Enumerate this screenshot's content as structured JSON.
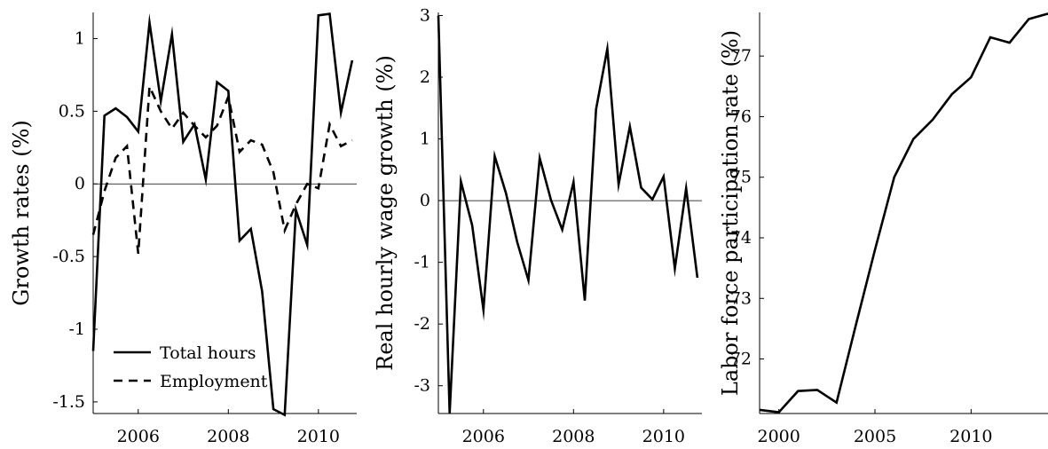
{
  "chart_data": [
    {
      "type": "line",
      "ylabel": "Growth rates (%)",
      "xlabel": "",
      "xlim": [
        2005,
        2010.85
      ],
      "ylim": [
        -1.58,
        1.18
      ],
      "xticks": [
        2006,
        2008,
        2010
      ],
      "yticks": [
        -1.5,
        -1,
        -0.5,
        0,
        0.5,
        1
      ],
      "ytick_labels": [
        "-1.5",
        "-1",
        "-0.5",
        "0",
        "0.5",
        "1"
      ],
      "zero_line": true,
      "grid": false,
      "legend": {
        "placement": "bottom-left"
      },
      "series": [
        {
          "name": "Total hours",
          "style": "solid",
          "x": [
            2005.0,
            2005.25,
            2005.5,
            2005.75,
            2006.0,
            2006.25,
            2006.5,
            2006.75,
            2007.0,
            2007.25,
            2007.5,
            2007.75,
            2008.0,
            2008.25,
            2008.5,
            2008.75,
            2009.0,
            2009.25,
            2009.5,
            2009.75,
            2010.0,
            2010.25,
            2010.5,
            2010.75
          ],
          "values": [
            -1.15,
            0.47,
            0.52,
            0.46,
            0.36,
            1.11,
            0.57,
            1.03,
            0.29,
            0.41,
            0.03,
            0.7,
            0.64,
            -0.39,
            -0.31,
            -0.74,
            -1.55,
            -1.59,
            -0.18,
            -0.42,
            1.16,
            1.17,
            0.49,
            0.85
          ]
        },
        {
          "name": "Employment",
          "style": "dashed",
          "x": [
            2005.0,
            2005.25,
            2005.5,
            2005.75,
            2006.0,
            2006.25,
            2006.5,
            2006.75,
            2007.0,
            2007.25,
            2007.5,
            2007.75,
            2008.0,
            2008.25,
            2008.5,
            2008.75,
            2009.0,
            2009.25,
            2009.5,
            2009.75,
            2010.0,
            2010.25,
            2010.5,
            2010.75
          ],
          "values": [
            -0.35,
            -0.05,
            0.18,
            0.26,
            -0.48,
            0.67,
            0.5,
            0.38,
            0.49,
            0.4,
            0.32,
            0.4,
            0.6,
            0.22,
            0.3,
            0.27,
            0.08,
            -0.32,
            -0.14,
            0.0,
            -0.03,
            0.41,
            0.26,
            0.3
          ]
        }
      ]
    },
    {
      "type": "line",
      "ylabel": "Real hourly wage growth (%)",
      "xlabel": "",
      "xlim": [
        2005,
        2010.85
      ],
      "ylim": [
        -3.45,
        3.05
      ],
      "xticks": [
        2006,
        2008,
        2010
      ],
      "yticks": [
        -3,
        -2,
        -1,
        0,
        1,
        2,
        3
      ],
      "ytick_labels": [
        "-3",
        "-2",
        "-1",
        "0",
        "1",
        "2",
        "3"
      ],
      "zero_line": true,
      "grid": false,
      "series": [
        {
          "style": "solid",
          "x": [
            2005.0,
            2005.25,
            2005.5,
            2005.75,
            2006.0,
            2006.25,
            2006.5,
            2006.75,
            2007.0,
            2007.25,
            2007.5,
            2007.75,
            2008.0,
            2008.25,
            2008.5,
            2008.75,
            2009.0,
            2009.25,
            2009.5,
            2009.75,
            2010.0,
            2010.25,
            2010.5,
            2010.75
          ],
          "values": [
            3.0,
            -3.45,
            0.31,
            -0.4,
            -1.77,
            0.72,
            0.12,
            -0.67,
            -1.29,
            0.69,
            0.01,
            -0.47,
            0.3,
            -1.62,
            1.48,
            2.46,
            0.26,
            1.2,
            0.21,
            0.02,
            0.39,
            -1.1,
            0.2,
            -1.25
          ]
        }
      ]
    },
    {
      "type": "line",
      "ylabel": "Labor force participation rate (%)",
      "xlabel": "",
      "xlim": [
        1999.0,
        2014.0
      ],
      "ylim": [
        71.1,
        77.72
      ],
      "xticks": [
        2000,
        2005,
        2010
      ],
      "yticks": [
        72,
        73,
        74,
        75,
        76,
        77
      ],
      "ytick_labels": [
        "72",
        "73",
        "74",
        "75",
        "76",
        "77"
      ],
      "zero_line": false,
      "grid": false,
      "series": [
        {
          "style": "solid",
          "x": [
            1999,
            2000,
            2001,
            2002,
            2003,
            2004,
            2005,
            2006,
            2007,
            2008,
            2009,
            2010,
            2011,
            2012,
            2013,
            2014
          ],
          "values": [
            71.16,
            71.12,
            71.47,
            71.49,
            71.28,
            72.55,
            73.8,
            75.0,
            75.63,
            75.95,
            76.37,
            76.65,
            77.31,
            77.22,
            77.61,
            77.7
          ]
        }
      ]
    }
  ]
}
